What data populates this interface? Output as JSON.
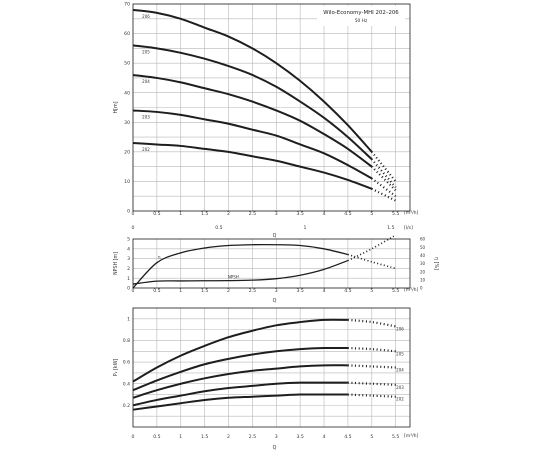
{
  "chart_data": [
    {
      "type": "line",
      "title": "Wilo-Economy-MHI 202–206",
      "subtitle": "50 Hz",
      "xlabel": "Q",
      "ylabel": "H[m]",
      "x_unit": "[m³/h]",
      "x2_unit": "[l/s]",
      "xlim": [
        0,
        5.8
      ],
      "ylim": [
        0,
        70
      ],
      "x_ticks": [
        0,
        0.5,
        1,
        1.5,
        2,
        2.5,
        3,
        3.5,
        4,
        4.5,
        5,
        5.5
      ],
      "x_tick_labels": [
        "0",
        "0.5",
        "1",
        "1.5",
        "2",
        "2.5",
        "3",
        "3.5",
        "4",
        "4.5",
        "5",
        "5.5"
      ],
      "y_ticks": [
        0,
        10,
        20,
        30,
        40,
        50,
        60,
        70
      ],
      "y_tick_labels": [
        "0",
        "10",
        "20",
        "30",
        "40",
        "50",
        "60",
        "70"
      ],
      "x2_ticks": [
        0,
        0.5,
        1,
        1.5
      ],
      "x2_tick_labels": [
        "0",
        "0.5",
        "1",
        "1.5"
      ],
      "grid": true,
      "series": [
        {
          "name": "206",
          "x": [
            0,
            0.5,
            1,
            1.5,
            2,
            2.5,
            3,
            3.5,
            4,
            4.5,
            5,
            5.5
          ],
          "values": [
            68,
            67,
            65,
            62,
            59,
            55,
            50,
            44,
            37,
            29,
            20,
            10
          ],
          "dotted_from_x": 5.0
        },
        {
          "name": "205",
          "x": [
            0,
            0.5,
            1,
            1.5,
            2,
            2.5,
            3,
            3.5,
            4,
            4.5,
            5,
            5.5
          ],
          "values": [
            56,
            55,
            53.5,
            51.5,
            49,
            46,
            42,
            37,
            31.5,
            25,
            17.5,
            8
          ],
          "dotted_from_x": 5.0
        },
        {
          "name": "204",
          "x": [
            0,
            0.5,
            1,
            1.5,
            2,
            2.5,
            3,
            3.5,
            4,
            4.5,
            5,
            5.5
          ],
          "values": [
            46,
            45,
            43.5,
            41.5,
            39.5,
            37,
            34,
            30.5,
            26,
            21,
            15,
            7
          ],
          "dotted_from_x": 5.0
        },
        {
          "name": "203",
          "x": [
            0,
            0.5,
            1,
            1.5,
            2,
            2.5,
            3,
            3.5,
            4,
            4.5,
            5,
            5.5
          ],
          "values": [
            34,
            33.5,
            32.5,
            31,
            29.5,
            27.5,
            25.5,
            22.5,
            19.5,
            15.5,
            11,
            5
          ],
          "dotted_from_x": 5.0
        },
        {
          "name": "202",
          "x": [
            0,
            0.5,
            1,
            1.5,
            2,
            2.5,
            3,
            3.5,
            4,
            4.5,
            5,
            5.5
          ],
          "values": [
            23,
            22.5,
            22,
            21,
            20,
            18.5,
            17,
            15,
            13,
            10.5,
            7.5,
            3.5
          ],
          "dotted_from_x": 5.0
        }
      ]
    },
    {
      "type": "line",
      "xlabel": "Q",
      "ylabel": "NPSH [m]",
      "y2label": "η [%]",
      "x_unit": "[m³/h]",
      "xlim": [
        0,
        5.8
      ],
      "ylim": [
        0,
        5
      ],
      "y2lim": [
        0,
        60
      ],
      "x_ticks": [
        0,
        0.5,
        1,
        1.5,
        2,
        2.5,
        3,
        3.5,
        4,
        4.5,
        5,
        5.5
      ],
      "x_tick_labels": [
        "0",
        "0.5",
        "1",
        "1.5",
        "2",
        "2.5",
        "3",
        "3.5",
        "4",
        "4.5",
        "5",
        "5.5"
      ],
      "y_ticks": [
        0,
        1,
        2,
        3,
        4,
        5
      ],
      "y_tick_labels": [
        "0",
        "1",
        "2",
        "3",
        "4",
        "5"
      ],
      "y2_ticks": [
        0,
        10,
        20,
        30,
        40,
        50,
        60
      ],
      "y2_tick_labels": [
        "0",
        "10",
        "20",
        "30",
        "40",
        "50",
        "60"
      ],
      "grid": true,
      "series": [
        {
          "name": "η",
          "axis": "right",
          "x": [
            0,
            0.5,
            1,
            1.5,
            2,
            2.5,
            3,
            3.5,
            4,
            4.5,
            5,
            5.5
          ],
          "values": [
            0,
            31,
            43,
            49,
            52,
            53,
            53,
            52,
            48,
            41,
            32,
            24
          ],
          "dotted_from_x": 4.5
        },
        {
          "name": "NPSH",
          "axis": "left",
          "x": [
            0,
            0.5,
            1,
            1.5,
            2,
            2.5,
            3,
            3.5,
            4,
            4.5,
            5,
            5.5
          ],
          "values": [
            0.4,
            0.7,
            0.72,
            0.74,
            0.75,
            0.8,
            0.95,
            1.3,
            1.9,
            2.8,
            4.0,
            5.4
          ],
          "dotted_from_x": 4.5
        }
      ]
    },
    {
      "type": "line",
      "xlabel": "Q",
      "ylabel": "P₂ [kW]",
      "x_unit": "[m³/h]",
      "xlim": [
        0,
        5.8
      ],
      "ylim": [
        0,
        1.1
      ],
      "x_ticks": [
        0,
        0.5,
        1,
        1.5,
        2,
        2.5,
        3,
        3.5,
        4,
        4.5,
        5,
        5.5
      ],
      "x_tick_labels": [
        "0",
        "0.5",
        "1",
        "1.5",
        "2",
        "2.5",
        "3",
        "3.5",
        "4",
        "4.5",
        "5",
        "5.5"
      ],
      "y_ticks": [
        0.2,
        0.4,
        0.6,
        0.8,
        1
      ],
      "y_tick_labels": [
        "0.2",
        "0.4",
        "0.6",
        "0.8",
        "1"
      ],
      "grid": true,
      "series": [
        {
          "name": "206",
          "x": [
            0,
            0.5,
            1,
            1.5,
            2,
            2.5,
            3,
            3.5,
            4,
            4.5,
            5,
            5.5
          ],
          "values": [
            0.42,
            0.55,
            0.66,
            0.75,
            0.83,
            0.89,
            0.94,
            0.97,
            0.99,
            0.99,
            0.97,
            0.93
          ],
          "dotted_from_x": 4.5
        },
        {
          "name": "205",
          "x": [
            0,
            0.5,
            1,
            1.5,
            2,
            2.5,
            3,
            3.5,
            4,
            4.5,
            5,
            5.5
          ],
          "values": [
            0.34,
            0.43,
            0.51,
            0.58,
            0.63,
            0.67,
            0.7,
            0.72,
            0.73,
            0.73,
            0.72,
            0.7
          ],
          "dotted_from_x": 4.5
        },
        {
          "name": "204",
          "x": [
            0,
            0.5,
            1,
            1.5,
            2,
            2.5,
            3,
            3.5,
            4,
            4.5,
            5,
            5.5
          ],
          "values": [
            0.27,
            0.34,
            0.4,
            0.45,
            0.49,
            0.52,
            0.54,
            0.56,
            0.57,
            0.57,
            0.56,
            0.55
          ],
          "dotted_from_x": 4.5
        },
        {
          "name": "203",
          "x": [
            0,
            0.5,
            1,
            1.5,
            2,
            2.5,
            3,
            3.5,
            4,
            4.5,
            5,
            5.5
          ],
          "values": [
            0.2,
            0.25,
            0.29,
            0.33,
            0.36,
            0.38,
            0.4,
            0.41,
            0.41,
            0.41,
            0.4,
            0.39
          ],
          "dotted_from_x": 4.5
        },
        {
          "name": "202",
          "x": [
            0,
            0.5,
            1,
            1.5,
            2,
            2.5,
            3,
            3.5,
            4,
            4.5,
            5,
            5.5
          ],
          "values": [
            0.16,
            0.19,
            0.22,
            0.25,
            0.27,
            0.28,
            0.29,
            0.3,
            0.3,
            0.3,
            0.29,
            0.28
          ],
          "dotted_from_x": 4.5
        }
      ]
    }
  ]
}
